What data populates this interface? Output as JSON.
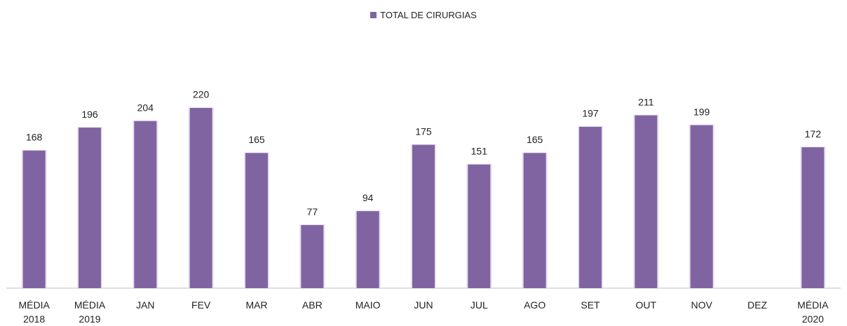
{
  "chart_data": {
    "type": "bar",
    "categories": [
      "MÉDIA 2018",
      "MÉDIA 2019",
      "JAN",
      "FEV",
      "MAR",
      "ABR",
      "MAIO",
      "JUN",
      "JUL",
      "AGO",
      "SET",
      "OUT",
      "NOV",
      "DEZ",
      "MÉDIA 2020"
    ],
    "series": [
      {
        "name": "TOTAL DE CIRURGIAS",
        "color": "#8064a2",
        "values": [
          168,
          196,
          204,
          220,
          165,
          77,
          94,
          175,
          151,
          165,
          197,
          211,
          199,
          null,
          172
        ]
      }
    ],
    "ylim": [
      0,
      250
    ],
    "legend": "top"
  }
}
